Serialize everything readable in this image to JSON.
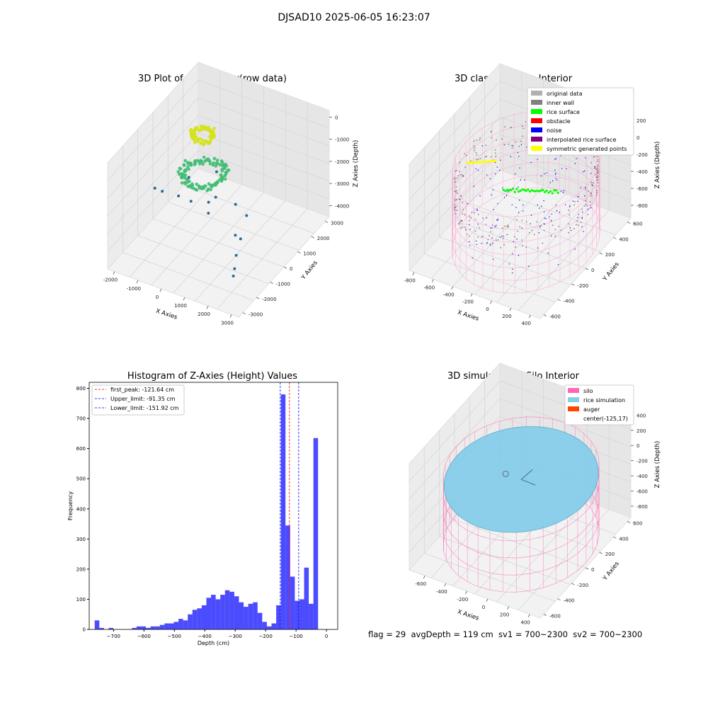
{
  "figure": {
    "suptitle": "DJSAD10 2025-06-05 16:23:07",
    "status_line": "flag = 29  avgDepth = 119 cm  sv1 = 700~2300  sv2 = 700~2300"
  },
  "chart_data": [
    {
      "type": "scatter",
      "title": "3D Plot of Silo Interior(row data)",
      "projection": "3d",
      "xlabel": "X Axies",
      "ylabel": "Y Axies",
      "zlabel": "Z Axies (Depth)",
      "x_ticks": [
        -2000,
        -1000,
        0,
        1000,
        2000,
        3000
      ],
      "y_ticks": [
        -3000,
        -2000,
        -1000,
        0,
        1000,
        2000,
        3000
      ],
      "z_ticks": [
        0,
        -1000,
        -2000,
        -3000,
        -4000
      ],
      "xlim": [
        -2300,
        3300
      ],
      "ylim": [
        -3300,
        3300
      ],
      "zlim": [
        -4500,
        300
      ],
      "colormap": "viridis",
      "groups": [
        {
          "label": "yellow ring",
          "cx": -700,
          "cy": 900,
          "r": 400,
          "z": -700,
          "count": 70,
          "color": "#d4e21a"
        },
        {
          "label": "green ring",
          "cx": -300,
          "cy": 300,
          "r": 800,
          "z": -1900,
          "count": 120,
          "color": "#3fbc73"
        },
        {
          "label": "outliers",
          "points": [
            [
              -2100,
              -200,
              -2900
            ],
            [
              -1900,
              0,
              -3100
            ],
            [
              -1500,
              500,
              -3500
            ],
            [
              -1200,
              900,
              -3900
            ],
            [
              -800,
              1500,
              -4200
            ],
            [
              0,
              2100,
              -4400
            ],
            [
              1400,
              -300,
              -3600
            ],
            [
              1800,
              -600,
              -3400
            ],
            [
              2200,
              -1600,
              -3300
            ],
            [
              2600,
              -2400,
              -3200
            ],
            [
              2900,
              -3000,
              -3000
            ],
            [
              1000,
              1200,
              -3900
            ],
            [
              500,
              -200,
              -2300
            ],
            [
              -400,
              1400,
              -2600
            ],
            [
              600,
              -900,
              -2500
            ],
            [
              -1000,
              400,
              -2400
            ]
          ],
          "color": "#31688e"
        }
      ]
    },
    {
      "type": "scatter",
      "title": "3D classify of Silo Interior",
      "projection": "3d",
      "xlabel": "X Axies",
      "ylabel": "Y Axies",
      "zlabel": "Z Axies (Depth)",
      "x_ticks": [
        -800,
        -600,
        -400,
        -200,
        0,
        200,
        400
      ],
      "y_ticks": [
        -600,
        -400,
        -200,
        0,
        200,
        400,
        600
      ],
      "z_ticks": [
        200,
        0,
        -200,
        -400,
        -600,
        -800
      ],
      "xlim": [
        -850,
        500
      ],
      "ylim": [
        -650,
        650
      ],
      "zlim": [
        -950,
        300
      ],
      "legend_placement": "upper right",
      "legend": [
        {
          "label": "original data",
          "color": "#b0b0b0"
        },
        {
          "label": "inner wall",
          "color": "#808080"
        },
        {
          "label": "rice surface",
          "color": "#00ff00"
        },
        {
          "label": "obstacle",
          "color": "#ff0000"
        },
        {
          "label": "noise",
          "color": "#0000ff"
        },
        {
          "label": "interpolated rice surface",
          "color": "#800080"
        },
        {
          "label": "symmetric generated points",
          "color": "#ffff00"
        }
      ],
      "silo": {
        "cx": -125,
        "cy": 17,
        "r": 620,
        "z_top": 0,
        "z_bottom": -900
      },
      "inner_wall_z": [
        -50,
        -400
      ],
      "rice_surface_z": -120
    },
    {
      "type": "bar",
      "title": "Histogram of Z-Axies (Height) Values",
      "xlabel": "Depth (cm)",
      "ylabel": "Frequency",
      "x_ticks": [
        -700,
        -600,
        -500,
        -400,
        -300,
        -200,
        -100,
        0
      ],
      "y_ticks": [
        0,
        100,
        200,
        300,
        400,
        500,
        600,
        700,
        800
      ],
      "xlim": [
        -780,
        37
      ],
      "ylim": [
        0,
        820
      ],
      "bin_width": 15.3,
      "bin_starts": [
        -762,
        -746.7,
        -731.4,
        -716.1,
        -700.8,
        -685.5,
        -670.2,
        -654.9,
        -639.6,
        -624.3,
        -609,
        -593.7,
        -578.4,
        -563.1,
        -547.8,
        -532.5,
        -517.2,
        -501.9,
        -486.6,
        -471.3,
        -456,
        -440.7,
        -425.4,
        -410.1,
        -394.8,
        -379.5,
        -364.2,
        -348.9,
        -333.6,
        -318.3,
        -303,
        -287.7,
        -272.4,
        -257.1,
        -241.8,
        -226.5,
        -211.2,
        -195.9,
        -180.6,
        -165.3,
        -150,
        -134.7,
        -119.4,
        -104.1,
        -88.8,
        -73.5,
        -58.2,
        -42.9,
        -27.6,
        -12.3
      ],
      "values": [
        30,
        5,
        0,
        5,
        0,
        0,
        0,
        0,
        5,
        10,
        10,
        5,
        10,
        10,
        15,
        20,
        20,
        25,
        35,
        30,
        50,
        65,
        70,
        80,
        105,
        115,
        100,
        115,
        130,
        125,
        110,
        90,
        75,
        85,
        90,
        55,
        25,
        10,
        20,
        80,
        780,
        345,
        175,
        95,
        100,
        205,
        85,
        635,
        0,
        0
      ],
      "bar_color": "#0000ff",
      "legend_placement": "upper left",
      "vlines": [
        {
          "label": "first_peak: -121.64 cm",
          "x": -121.64,
          "color": "#ff0000"
        },
        {
          "label": "Upper_limit: -91.35 cm",
          "x": -91.35,
          "color": "#0000ff"
        },
        {
          "label": "Lower_limit: -151.92 cm",
          "x": -151.92,
          "color": "#0000ff"
        }
      ]
    },
    {
      "type": "area",
      "title": "3D simulation of Silo Interior",
      "projection": "3d",
      "xlabel": "X Axies",
      "ylabel": "Y Axies",
      "zlabel": "Z Axies (Depth)",
      "x_ticks": [
        -600,
        -400,
        -200,
        0,
        200,
        400
      ],
      "y_ticks": [
        -600,
        -400,
        -200,
        0,
        200,
        400,
        600
      ],
      "z_ticks": [
        400,
        200,
        0,
        -200,
        -400,
        -600,
        -800
      ],
      "xlim": [
        -750,
        500
      ],
      "ylim": [
        -650,
        650
      ],
      "zlim": [
        -950,
        450
      ],
      "legend_placement": "upper right",
      "legend": [
        {
          "label": "silo",
          "color": "#ff69b4"
        },
        {
          "label": "rice simulation",
          "color": "#87ceeb"
        },
        {
          "label": "auger",
          "color": "#ff4500"
        },
        {
          "label": "center(-125,17)",
          "color": ""
        }
      ],
      "silo": {
        "cx": -125,
        "cy": 17,
        "r": 620,
        "z_top": 0,
        "z_bottom": -900
      },
      "rice_surface_z": -120
    }
  ]
}
